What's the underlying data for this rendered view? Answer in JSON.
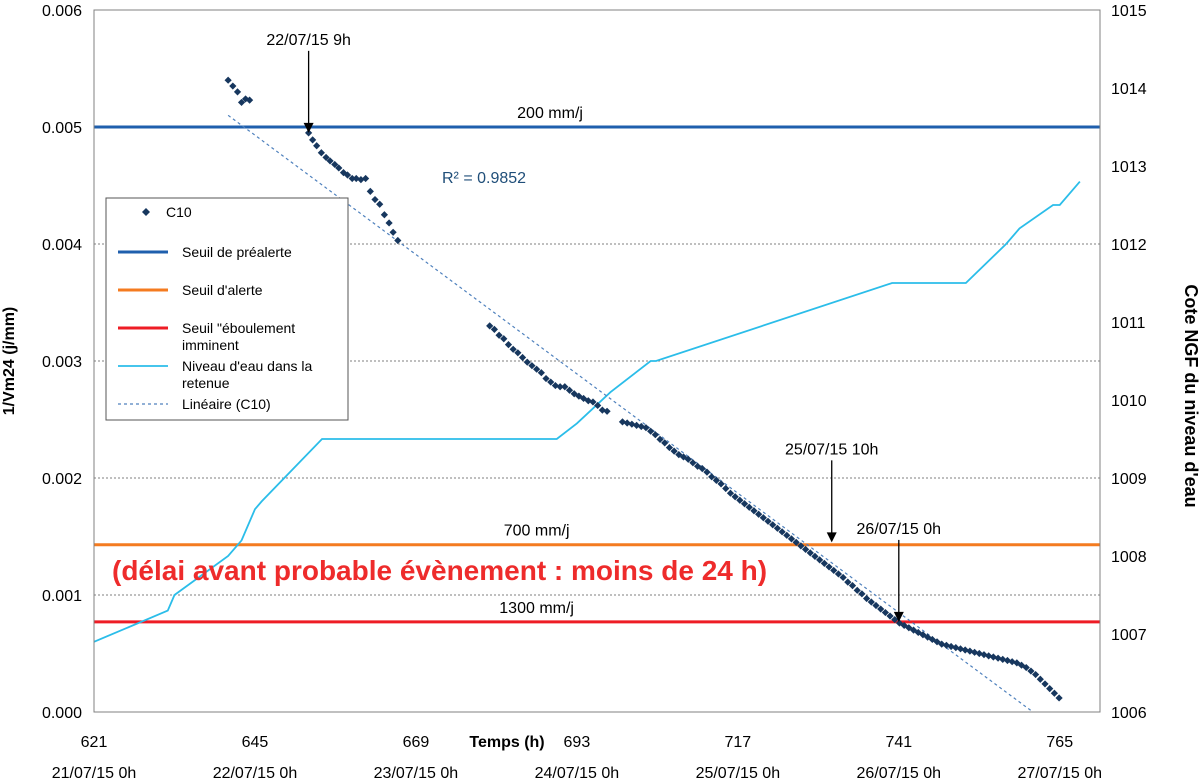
{
  "chart_data": {
    "type": "scatter",
    "xlabel": "Temps (h)",
    "ylabel": "1/Vm24 (j/mm)",
    "y2label": "Cote NGF du niveau d'eau",
    "xlim": [
      621,
      771
    ],
    "ylim": [
      0,
      0.006
    ],
    "y2lim": [
      1006,
      1015
    ],
    "x_ticks": [
      621,
      645,
      669,
      693,
      717,
      741,
      765
    ],
    "x_tick_dates": [
      "21/07/15 0h",
      "22/07/15 0h",
      "23/07/15 0h",
      "24/07/15 0h",
      "25/07/15 0h",
      "26/07/15 0h",
      "27/07/15 0h"
    ],
    "y_ticks": [
      "0.000",
      "0.001",
      "0.002",
      "0.003",
      "0.004",
      "0.005",
      "0.006"
    ],
    "y2_ticks": [
      "1006",
      "1007",
      "1008",
      "1009",
      "1010",
      "1011",
      "1012",
      "1013",
      "1014",
      "1015"
    ],
    "grid": "horizontal dotted",
    "legend_position": "left",
    "legend": [
      "C10",
      "Seuil de préalerte",
      "Seuil d'alerte",
      "Seuil \"éboulement imminent",
      "Niveau d'eau dans la retenue",
      "Linéaire (C10)"
    ],
    "colors": {
      "c10": "#17375e",
      "prealerte": "#1f5fad",
      "alerte": "#f47b20",
      "eboulement": "#ee1c25",
      "niveau": "#2bbde9",
      "lineaire": "#4f81bd",
      "note": "#ee2b2b"
    },
    "thresholds": [
      {
        "name": "Seuil de préalerte",
        "value": 0.005,
        "label": "200 mm/j",
        "label_x": 689
      },
      {
        "name": "Seuil d'alerte",
        "value": 0.00143,
        "label": "700 mm/j",
        "label_x": 687
      },
      {
        "name": "Seuil \"éboulement imminent",
        "value": 0.00077,
        "label": "1300 mm/j",
        "label_x": 687
      }
    ],
    "r2_label": "R² = 0.9852",
    "note": "(délai avant probable évènement : moins de 24 h)",
    "arrows": [
      {
        "label": "22/07/15 9h",
        "x": 653,
        "y": 0.00495
      },
      {
        "label": "25/07/15 10h",
        "x": 731,
        "y": 0.00145
      },
      {
        "label": "26/07/15 0h",
        "x": 741,
        "y": 0.00077
      }
    ],
    "trendline": {
      "x": [
        641,
        761
      ],
      "y": [
        0.0051,
        0
      ]
    },
    "series": [
      {
        "name": "C10",
        "points": [
          [
            641.0,
            0.0054
          ],
          [
            641.7,
            0.00535
          ],
          [
            642.4,
            0.0053
          ],
          [
            643.0,
            0.00521
          ],
          [
            643.6,
            0.00524
          ],
          [
            644.2,
            0.00523
          ],
          [
            653.0,
            0.00495
          ],
          [
            653.6,
            0.00489
          ],
          [
            654.2,
            0.00484
          ],
          [
            654.9,
            0.00478
          ],
          [
            655.6,
            0.00474
          ],
          [
            656.2,
            0.00471
          ],
          [
            656.9,
            0.00468
          ],
          [
            657.5,
            0.00465
          ],
          [
            658.2,
            0.00461
          ],
          [
            658.8,
            0.00459
          ],
          [
            659.5,
            0.00456
          ],
          [
            660.1,
            0.00456
          ],
          [
            660.8,
            0.00455
          ],
          [
            661.5,
            0.00456
          ],
          [
            662.2,
            0.00445
          ],
          [
            662.9,
            0.00438
          ],
          [
            663.6,
            0.00434
          ],
          [
            664.3,
            0.00425
          ],
          [
            665.0,
            0.00418
          ],
          [
            665.6,
            0.0041
          ],
          [
            666.3,
            0.00403
          ],
          [
            680.0,
            0.0033
          ],
          [
            680.7,
            0.00327
          ],
          [
            681.4,
            0.00322
          ],
          [
            682.1,
            0.00319
          ],
          [
            682.8,
            0.00314
          ],
          [
            683.5,
            0.0031
          ],
          [
            684.2,
            0.00307
          ],
          [
            684.9,
            0.00303
          ],
          [
            685.6,
            0.00299
          ],
          [
            686.3,
            0.00296
          ],
          [
            687.0,
            0.00293
          ],
          [
            687.7,
            0.0029
          ],
          [
            688.4,
            0.00285
          ],
          [
            689.1,
            0.00282
          ],
          [
            689.8,
            0.00279
          ],
          [
            690.5,
            0.00278
          ],
          [
            691.2,
            0.00278
          ],
          [
            691.9,
            0.00275
          ],
          [
            692.6,
            0.00272
          ],
          [
            693.3,
            0.0027
          ],
          [
            694.0,
            0.00268
          ],
          [
            694.7,
            0.00266
          ],
          [
            695.4,
            0.00265
          ],
          [
            696.1,
            0.00262
          ],
          [
            696.8,
            0.00258
          ],
          [
            697.5,
            0.00257
          ],
          [
            699.8,
            0.00248
          ],
          [
            700.5,
            0.00247
          ],
          [
            701.2,
            0.00246
          ],
          [
            701.9,
            0.00245
          ],
          [
            702.6,
            0.00244
          ],
          [
            703.3,
            0.00243
          ],
          [
            704.0,
            0.0024
          ],
          [
            704.7,
            0.00237
          ],
          [
            705.4,
            0.00233
          ],
          [
            706.1,
            0.0023
          ],
          [
            706.8,
            0.00226
          ],
          [
            707.5,
            0.00223
          ],
          [
            708.2,
            0.0022
          ],
          [
            708.9,
            0.00218
          ],
          [
            709.6,
            0.00216
          ],
          [
            710.3,
            0.00213
          ],
          [
            711.0,
            0.0021
          ],
          [
            711.7,
            0.00208
          ],
          [
            712.4,
            0.00205
          ],
          [
            713.1,
            0.00201
          ],
          [
            713.8,
            0.00198
          ],
          [
            714.5,
            0.00195
          ],
          [
            715.2,
            0.00191
          ],
          [
            715.9,
            0.00187
          ],
          [
            716.6,
            0.00184
          ],
          [
            717.3,
            0.00181
          ],
          [
            718.0,
            0.00178
          ],
          [
            718.7,
            0.00175
          ],
          [
            719.4,
            0.00172
          ],
          [
            720.1,
            0.00169
          ],
          [
            720.8,
            0.00166
          ],
          [
            721.5,
            0.00163
          ],
          [
            722.2,
            0.0016
          ],
          [
            722.9,
            0.00157
          ],
          [
            723.6,
            0.00154
          ],
          [
            724.3,
            0.00151
          ],
          [
            725.0,
            0.00148
          ],
          [
            725.7,
            0.00145
          ],
          [
            726.4,
            0.00142
          ],
          [
            727.1,
            0.00139
          ],
          [
            727.8,
            0.00136
          ],
          [
            728.5,
            0.00133
          ],
          [
            729.2,
            0.0013
          ],
          [
            729.9,
            0.00127
          ],
          [
            730.6,
            0.00124
          ],
          [
            731.3,
            0.00121
          ],
          [
            732.0,
            0.00118
          ],
          [
            732.7,
            0.00115
          ],
          [
            733.4,
            0.00111
          ],
          [
            734.1,
            0.00108
          ],
          [
            734.8,
            0.00104
          ],
          [
            735.5,
            0.00101
          ],
          [
            736.2,
            0.00097
          ],
          [
            736.9,
            0.00094
          ],
          [
            737.6,
            0.00091
          ],
          [
            738.3,
            0.00088
          ],
          [
            739.0,
            0.00085
          ],
          [
            739.7,
            0.00082
          ],
          [
            740.4,
            0.00079
          ],
          [
            741.1,
            0.00076
          ],
          [
            741.8,
            0.00074
          ],
          [
            742.5,
            0.00072
          ],
          [
            743.2,
            0.0007
          ],
          [
            743.9,
            0.00068
          ],
          [
            744.6,
            0.00066
          ],
          [
            745.3,
            0.00064
          ],
          [
            746.0,
            0.00062
          ],
          [
            746.7,
            0.0006
          ],
          [
            747.4,
            0.00058
          ],
          [
            748.1,
            0.00057
          ],
          [
            748.8,
            0.00056
          ],
          [
            749.5,
            0.00055
          ],
          [
            750.2,
            0.00054
          ],
          [
            750.9,
            0.00053
          ],
          [
            751.6,
            0.00052
          ],
          [
            752.3,
            0.00051
          ],
          [
            753.0,
            0.0005
          ],
          [
            753.7,
            0.00049
          ],
          [
            754.4,
            0.00048
          ],
          [
            755.1,
            0.00047
          ],
          [
            755.8,
            0.00046
          ],
          [
            756.5,
            0.00045
          ],
          [
            757.2,
            0.00044
          ],
          [
            757.9,
            0.00043
          ],
          [
            758.6,
            0.00042
          ],
          [
            759.3,
            0.0004
          ],
          [
            760.0,
            0.00038
          ],
          [
            760.7,
            0.00035
          ],
          [
            761.4,
            0.00032
          ],
          [
            762.1,
            0.00028
          ],
          [
            762.8,
            0.00024
          ],
          [
            763.5,
            0.0002
          ],
          [
            764.2,
            0.00016
          ],
          [
            764.9,
            0.00012
          ]
        ]
      },
      {
        "name": "Niveau d'eau dans la retenue",
        "axis": "right",
        "x": [
          621,
          632,
          633,
          641,
          643,
          645,
          646,
          655,
          690,
          693,
          698,
          704,
          704.8,
          740,
          751,
          757,
          759,
          764,
          765,
          768
        ],
        "y": [
          1006.9,
          1007.3,
          1007.5,
          1008.0,
          1008.2,
          1008.6,
          1008.7,
          1009.5,
          1009.5,
          1009.7,
          1010.1,
          1010.5,
          1010.5,
          1011.5,
          1011.5,
          1012.0,
          1012.2,
          1012.5,
          1012.5,
          1012.8
        ]
      }
    ]
  }
}
